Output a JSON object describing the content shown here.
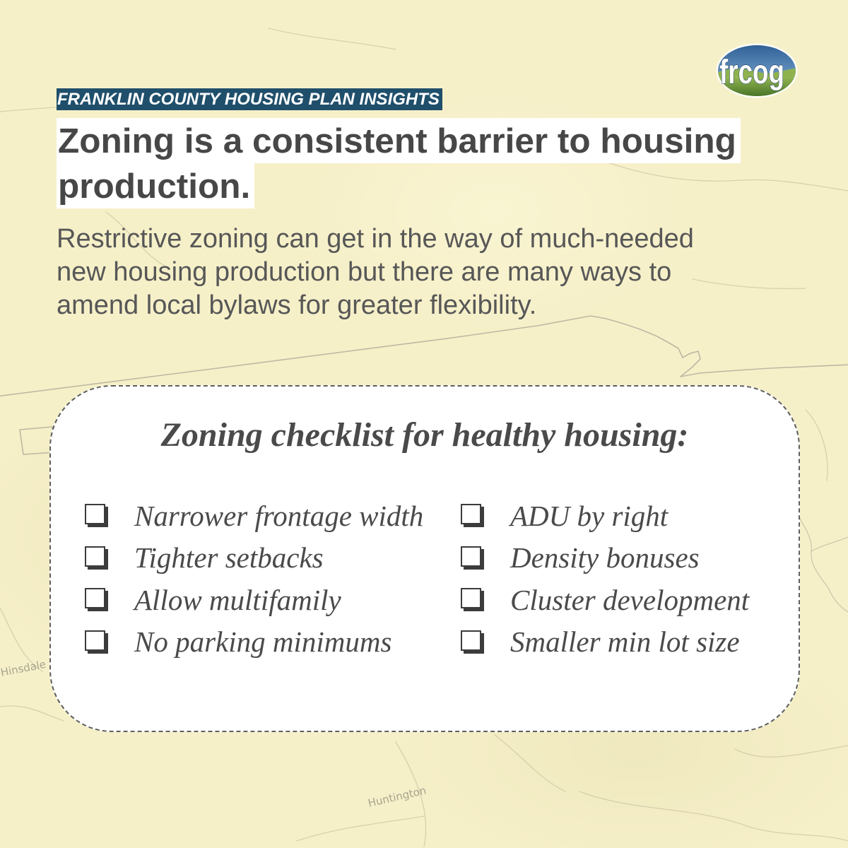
{
  "logo": {
    "text": "frcog",
    "icon": "frcog-logo"
  },
  "header": {
    "kicker": "FRANKLIN COUNTY HOUSING PLAN INSIGHTS",
    "headline": "Zoning is a consistent barrier to housing production.",
    "body": "Restrictive zoning can get in the way of much-needed new housing production but there are many ways to amend local bylaws for greater flexibility."
  },
  "checklist": {
    "title": "Zoning checklist for healthy housing:",
    "checkbox_icon": "checkbox-icon",
    "left_items": [
      "Narrower frontage width",
      "Tighter setbacks",
      "Allow multifamily",
      "No parking minimums"
    ],
    "right_items": [
      "ADU by right",
      "Density bonuses",
      "Cluster development",
      "Smaller min lot size"
    ]
  },
  "map": {
    "labels": [
      "Hinsdale",
      "Huntington"
    ]
  },
  "colors": {
    "background": "#f6f0c9",
    "kicker_background": "#1f4f6b",
    "kicker_text": "#ffffff",
    "headline_text": "#474747",
    "headline_highlight": "#ffffff",
    "body_text": "#575757",
    "card_background": "#ffffff",
    "card_border": "#5f5f5f",
    "checklist_text": "#4a4a4a",
    "checkbox": "#3c3c3c",
    "logo_sky": "#2b5c92",
    "logo_hills": "#3e6b22",
    "map_label": "#8d8b7c",
    "map_line": "#cfc8a6",
    "map_boundary": "#a9a695",
    "map_river": "#b7b39c"
  }
}
